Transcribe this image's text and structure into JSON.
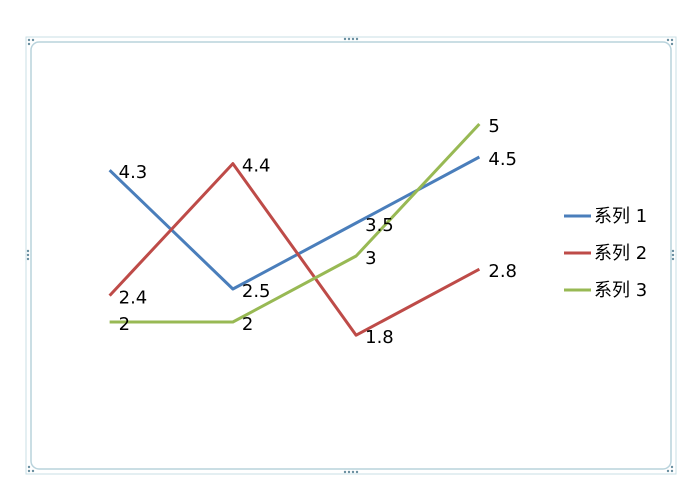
{
  "chart_data": {
    "type": "line",
    "categories": [
      null,
      null,
      null,
      null
    ],
    "series": [
      {
        "name": "系列 1",
        "color": "#4a7ebb",
        "values": [
          4.3,
          2.5,
          3.5,
          4.5
        ]
      },
      {
        "name": "系列 2",
        "color": "#be4b48",
        "values": [
          2.4,
          4.4,
          1.8,
          2.8
        ]
      },
      {
        "name": "系列 3",
        "color": "#98b954",
        "values": [
          2,
          2,
          3,
          5
        ]
      }
    ],
    "ylim": [
      0,
      6
    ],
    "legend": "right",
    "data_labels": true
  }
}
